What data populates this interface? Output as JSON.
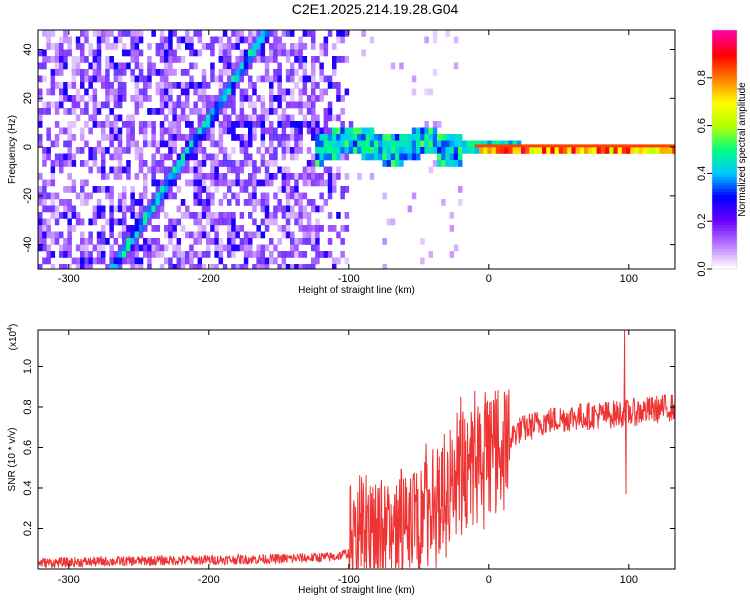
{
  "title": "C2E1.2025.214.19.28.G04",
  "chart_data": [
    {
      "type": "heatmap",
      "xlabel": "Height of straight line (km)",
      "ylabel": "Frequency (Hz)",
      "xlim": [
        -322,
        133
      ],
      "ylim": [
        -50,
        48
      ],
      "xticks": [
        -300,
        -200,
        -100,
        0,
        100
      ],
      "yticks": [
        -40,
        -20,
        0,
        20,
        40
      ],
      "colorbar": {
        "label": "Normalized spectral amplitude",
        "range": [
          0,
          1
        ],
        "ticks": [
          0.0,
          0.2,
          0.4,
          0.6,
          0.8
        ],
        "tick_labels": [
          "0.0",
          "0.2",
          "0.4",
          "0.6",
          "0.8"
        ],
        "colors": [
          "#ffffff",
          "#b877ff",
          "#6a00ff",
          "#0000ff",
          "#00c8ff",
          "#00ff80",
          "#b4ff00",
          "#ffff00",
          "#ff8000",
          "#ff0000",
          "#ff00a0"
        ]
      },
      "features": [
        {
          "name": "diagonal",
          "from": [
            -272,
            -50
          ],
          "to": [
            -165,
            45
          ]
        },
        {
          "name": "center_band",
          "x_range": [
            -125,
            133
          ],
          "frequency": 0
        }
      ]
    },
    {
      "type": "line",
      "xlabel": "Height of straight line (km)",
      "ylabel": "SNR (10 * v/v)",
      "scale_note": "(x10",
      "scale_exp": "4",
      "xlim": [
        -322,
        133
      ],
      "ylim": [
        0.0,
        1.18
      ],
      "xticks": [
        -300,
        -200,
        -100,
        0,
        100
      ],
      "yticks": [
        0.2,
        0.4,
        0.6,
        0.8,
        1.0
      ],
      "ytick_labels": [
        "0.2",
        "0.4",
        "0.6",
        "0.8",
        "1.0"
      ],
      "color": "#ee3333",
      "trend": [
        {
          "x": -322,
          "y": 0.03
        },
        {
          "x": -250,
          "y": 0.04
        },
        {
          "x": -150,
          "y": 0.05
        },
        {
          "x": -110,
          "y": 0.06
        },
        {
          "x": -100,
          "y": 0.08
        },
        {
          "x": -90,
          "y": 0.14
        },
        {
          "x": -70,
          "y": 0.14
        },
        {
          "x": -55,
          "y": 0.22
        },
        {
          "x": -40,
          "y": 0.3
        },
        {
          "x": -30,
          "y": 0.38
        },
        {
          "x": -20,
          "y": 0.45
        },
        {
          "x": -10,
          "y": 0.5
        },
        {
          "x": 0,
          "y": 0.55
        },
        {
          "x": 10,
          "y": 0.6
        },
        {
          "x": 20,
          "y": 0.68
        },
        {
          "x": 40,
          "y": 0.73
        },
        {
          "x": 60,
          "y": 0.75
        },
        {
          "x": 80,
          "y": 0.76
        },
        {
          "x": 100,
          "y": 0.77
        },
        {
          "x": 133,
          "y": 0.8
        }
      ],
      "spikes": [
        {
          "x": 97,
          "y": 1.18
        },
        {
          "x": 98,
          "y": 0.37
        },
        {
          "x": -20,
          "y": 0.85
        },
        {
          "x": -10,
          "y": 0.88
        },
        {
          "x": 13,
          "y": 0.86
        }
      ]
    }
  ]
}
